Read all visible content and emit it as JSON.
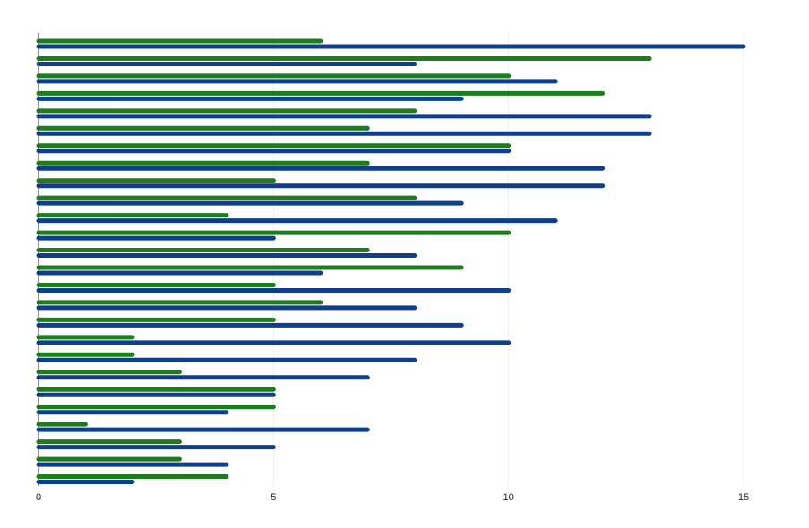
{
  "chart_data": {
    "type": "hbar",
    "categories": [
      null,
      null,
      null,
      null,
      null,
      null,
      null,
      null,
      null,
      null,
      null,
      null,
      null,
      null,
      null,
      null,
      null,
      null,
      null,
      null,
      null,
      null,
      null,
      null,
      null,
      null
    ],
    "series": [
      {
        "color": "#1e7b1e",
        "values": [
          6,
          13,
          10,
          12,
          8,
          7,
          10,
          7,
          5,
          8,
          4,
          10,
          7,
          9,
          5,
          6,
          5,
          2,
          2,
          3,
          5,
          5,
          1,
          3,
          3,
          4
        ]
      },
      {
        "color": "#0f3f8c",
        "values": [
          15,
          8,
          11,
          9,
          13,
          13,
          10,
          12,
          12,
          9,
          11,
          5,
          8,
          6,
          10,
          8,
          9,
          10,
          8,
          7,
          5,
          4,
          7,
          5,
          4,
          2
        ]
      }
    ],
    "xlim": [
      0,
      15
    ],
    "xticks": [
      0,
      5,
      10,
      15
    ],
    "grid": true
  }
}
